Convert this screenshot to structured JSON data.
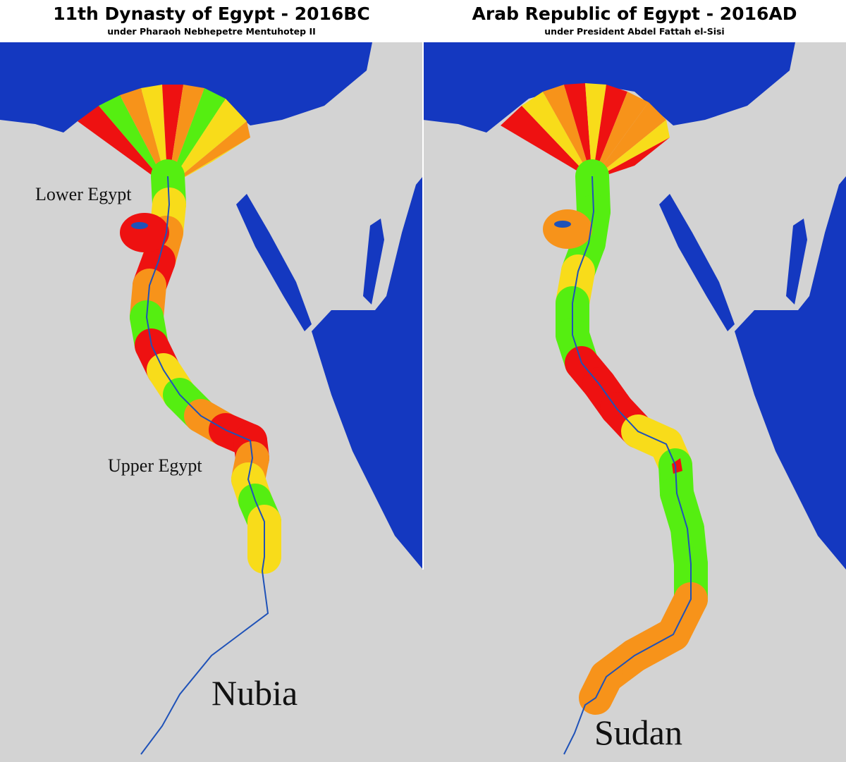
{
  "panels": [
    {
      "title": "11th Dynasty of Egypt - 2016BC",
      "subtitle": "under Pharaoh Nebhepetre Mentuhotep II",
      "labels": [
        "Lower Egypt",
        "Upper Egypt",
        "Nubia"
      ]
    },
    {
      "title": "Arab Republic of Egypt - 2016AD",
      "subtitle": "under President Abdel Fattah el-Sisi",
      "labels": [
        "Sudan"
      ]
    }
  ]
}
